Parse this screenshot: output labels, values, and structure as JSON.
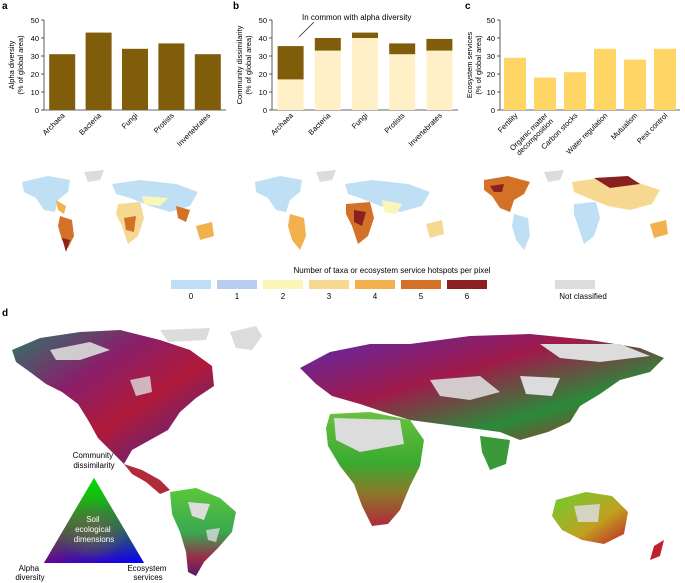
{
  "panels": {
    "a": "a",
    "b": "b",
    "c": "c",
    "d": "d"
  },
  "colors": {
    "alpha": "#7f5d0a",
    "common": "#fff0c8",
    "services": "#ffd566",
    "land_unclassified": "#dcdcdc"
  },
  "chart_data": [
    {
      "id": "a",
      "type": "bar",
      "ylabel": "Alpha diversity\n(% of global area)",
      "ylim": [
        0,
        50
      ],
      "yticks": [
        0,
        10,
        20,
        30,
        40,
        50
      ],
      "categories": [
        "Archaea",
        "Bacteria",
        "Fungi",
        "Protists",
        "Invertebrates"
      ],
      "series": [
        {
          "values": [
            31,
            43,
            34,
            37,
            31
          ]
        }
      ]
    },
    {
      "id": "b",
      "type": "bar",
      "stacked": true,
      "ylabel": "Community dissimilarity\n(% of global area)",
      "ylim": [
        0,
        50
      ],
      "yticks": [
        0,
        10,
        20,
        30,
        40,
        50
      ],
      "categories": [
        "Archaea",
        "Bacteria",
        "Fungi",
        "Protists",
        "Invertebrates"
      ],
      "series": [
        {
          "values": [
            17,
            33,
            40,
            31,
            33
          ]
        },
        {
          "values": [
            18.5,
            7,
            3,
            6,
            6.5
          ]
        }
      ],
      "annotation": "In common with alpha diversity"
    },
    {
      "id": "c",
      "type": "bar",
      "ylabel": "Ecosystem services\n(% of global area)",
      "ylim": [
        0,
        50
      ],
      "yticks": [
        0,
        10,
        20,
        30,
        40,
        50
      ],
      "categories": [
        "Fertility",
        "Organic matter\ndecomposition",
        "Carbon stocks",
        "Water regulation",
        "Mutualism",
        "Pest control"
      ],
      "series": [
        {
          "values": [
            29,
            18,
            21,
            34,
            28,
            34
          ]
        }
      ]
    }
  ],
  "hotspot_legend": {
    "title": "Number of taxa or ecosystem service hotspots per pixel",
    "items": [
      {
        "label": "0",
        "color": "#bfdff5"
      },
      {
        "label": "1",
        "color": "#b6cdf0"
      },
      {
        "label": "2",
        "color": "#fbf6b8"
      },
      {
        "label": "3",
        "color": "#f7d890"
      },
      {
        "label": "4",
        "color": "#f2b14e"
      },
      {
        "label": "5",
        "color": "#d37226"
      },
      {
        "label": "6",
        "color": "#8a2020"
      }
    ],
    "not_classified": {
      "label": "Not classified",
      "color": "#dcdcdc"
    }
  },
  "triangle_legend": {
    "top": "Community\ndissimilarity",
    "left": "Alpha\ndiversity",
    "right": "Ecosystem\nservices",
    "center": "Soil\necological\ndimensions"
  }
}
